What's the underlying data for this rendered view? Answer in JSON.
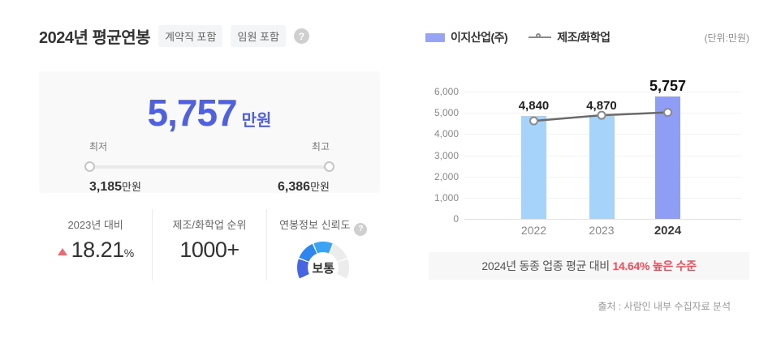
{
  "left": {
    "title": "2024년 평균연봉",
    "tags": [
      "계약직 포함",
      "임원 포함"
    ],
    "help_icon": "?",
    "summary": {
      "value": "5,757",
      "unit": "만원",
      "min_label": "최저",
      "max_label": "최고",
      "min_value": "3,185",
      "min_unit": "만원",
      "max_value": "6,386",
      "max_unit": "만원"
    },
    "stats": [
      {
        "label": "2023년 대비",
        "value": "18.21",
        "suffix": "%",
        "direction": "up"
      },
      {
        "label": "제조/화학업 순위",
        "value": "1000+"
      },
      {
        "label": "연봉정보 신뢰도",
        "help_icon": "?",
        "gauge": {
          "label": "보통",
          "segments": 5,
          "filled": 3,
          "filled_colors": [
            "#4565e4",
            "#2e87f0",
            "#3aa3f2"
          ],
          "empty_color": "#ececec"
        }
      }
    ]
  },
  "right": {
    "legend": [
      {
        "label": "이지산업(주)",
        "type": "bar",
        "color": "#97a3f3"
      },
      {
        "label": "제조/화학업",
        "type": "line",
        "color": "#8a8a8a"
      }
    ],
    "unit_note": "(단위:만원)",
    "notice": {
      "prefix": "2024년 동종 업종 평균 대비 ",
      "highlight": "14.64% 높은 수준"
    },
    "source": "출처 : 사람인 내부 수집자료 분석"
  },
  "chart_data": {
    "type": "bar",
    "categories": [
      "2022",
      "2023",
      "2024"
    ],
    "series": [
      {
        "name": "이지산업(주)",
        "type": "bar",
        "values": [
          4840,
          4870,
          5757
        ],
        "colors": [
          "#a5d3fa",
          "#a5d3fa",
          "#8f9df5"
        ]
      },
      {
        "name": "제조/화학업",
        "type": "line",
        "values": [
          4620,
          4885,
          5022
        ],
        "color": "#6a6a6a",
        "marker": "open-circle",
        "estimated": true
      }
    ],
    "bar_labels": [
      "4,840",
      "4,870",
      "5,757"
    ],
    "title": "",
    "xlabel": "",
    "ylabel": "만원",
    "ylim": [
      0,
      6000
    ],
    "yticks": [
      0,
      1000,
      2000,
      3000,
      4000,
      5000,
      6000
    ],
    "grid": true,
    "legend_position": "top",
    "highlight_category": "2024"
  },
  "colors": {
    "accent_blue": "#4f60e0",
    "bar_light_blue": "#a5d3fa",
    "bar_periwinkle": "#8f9df5",
    "line_gray": "#6a6a6a",
    "alert_red": "#f04e5a",
    "up_triangle_red": "#ed6b70",
    "card_bg": "#f9f9f9",
    "notice_bg": "#f7f7f7"
  }
}
